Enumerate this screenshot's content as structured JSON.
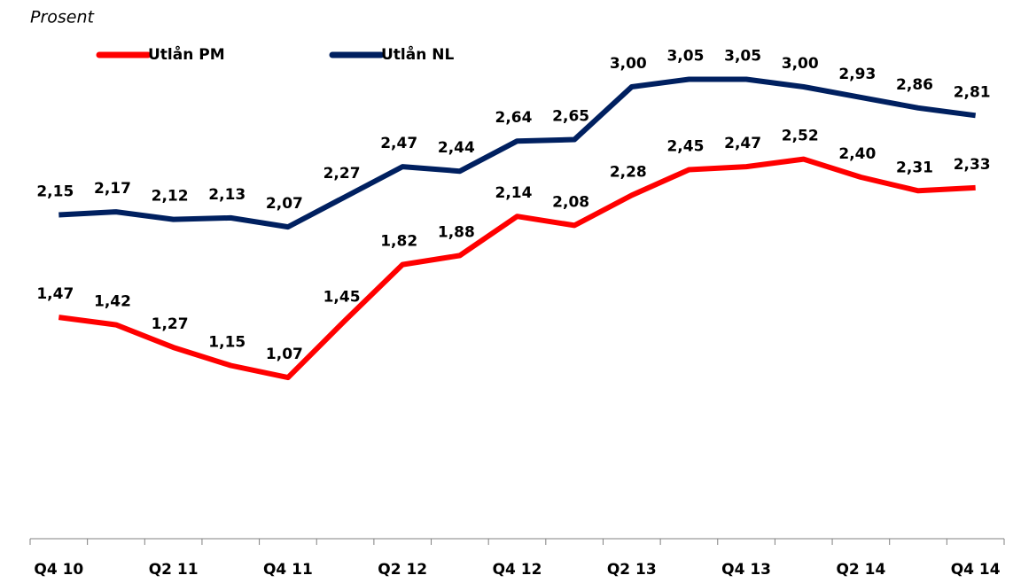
{
  "chart_data": {
    "type": "line",
    "y_label": "Prosent",
    "categories": [
      "Q4 10",
      null,
      "Q2 11",
      null,
      "Q4 11",
      null,
      "Q2 12",
      null,
      "Q4 12",
      null,
      "Q2 13",
      null,
      "Q4 13",
      null,
      "Q2 14",
      null,
      "Q4 14"
    ],
    "series": [
      {
        "name": "Utlån PM",
        "color": "#ff0000",
        "values": [
          1.47,
          1.42,
          1.27,
          1.15,
          1.07,
          1.45,
          1.82,
          1.88,
          2.14,
          2.08,
          2.28,
          2.45,
          2.47,
          2.52,
          2.4,
          2.31,
          2.33
        ],
        "value_labels": [
          "1,47",
          "1,42",
          "1,27",
          "1,15",
          "1,07",
          "1,45",
          "1,82",
          "1,88",
          "2,14",
          "2,08",
          "2,28",
          "2,45",
          "2,47",
          "2,52",
          "2,40",
          "2,31",
          "2,33"
        ]
      },
      {
        "name": "Utlån NL",
        "color": "#002060",
        "values": [
          2.15,
          2.17,
          2.12,
          2.13,
          2.07,
          2.27,
          2.47,
          2.44,
          2.64,
          2.65,
          3.0,
          3.05,
          3.05,
          3.0,
          2.93,
          2.86,
          2.81
        ],
        "value_labels": [
          "2,15",
          "2,17",
          "2,12",
          "2,13",
          "2,07",
          "2,27",
          "2,47",
          "2,44",
          "2,64",
          "2,65",
          "3,00",
          "3,05",
          "3,05",
          "3,00",
          "2,93",
          "2,86",
          "2,81"
        ]
      }
    ],
    "ylim": [
      0,
      3.5
    ],
    "legend": "top-left"
  }
}
